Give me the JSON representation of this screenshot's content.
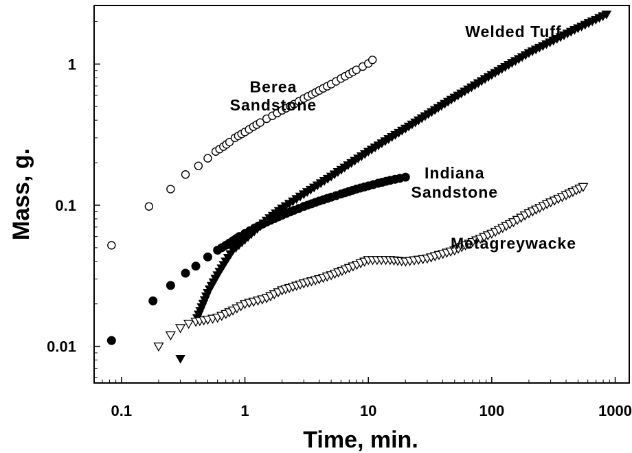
{
  "chart_data": {
    "type": "scatter",
    "x_scale": "log",
    "y_scale": "log",
    "xlim": [
      0.06,
      1300
    ],
    "ylim": [
      0.0055,
      2.6
    ],
    "grid": false,
    "legend": "none",
    "xlabel": "Time, min.",
    "ylabel": "Mass, g.",
    "x_ticks": [
      {
        "value": 0.1,
        "label": "0.1"
      },
      {
        "value": 1,
        "label": "1"
      },
      {
        "value": 10,
        "label": "10"
      },
      {
        "value": 100,
        "label": "100"
      },
      {
        "value": 1000,
        "label": "1000"
      }
    ],
    "y_ticks": [
      {
        "value": 0.01,
        "label": "0.01"
      },
      {
        "value": 0.1,
        "label": "0.1"
      },
      {
        "value": 1,
        "label": "1"
      }
    ],
    "series": [
      {
        "name": "Berea Sandstone",
        "marker": "open-circle",
        "x": [
          0.083,
          0.167,
          0.25,
          0.33,
          0.42,
          0.5,
          0.58,
          0.67,
          0.75,
          0.83,
          1.0,
          1.17,
          1.33,
          1.5,
          1.67,
          2.0,
          2.5,
          3.0,
          3.5,
          4.0,
          5.0,
          6.0,
          7.0,
          8.0,
          9.0,
          10.0,
          10.8
        ],
        "y": [
          0.052,
          0.098,
          0.13,
          0.165,
          0.19,
          0.215,
          0.24,
          0.26,
          0.28,
          0.3,
          0.33,
          0.36,
          0.385,
          0.41,
          0.43,
          0.47,
          0.52,
          0.57,
          0.61,
          0.65,
          0.72,
          0.79,
          0.85,
          0.91,
          0.96,
          1.01,
          1.07
        ]
      },
      {
        "name": "Indiana Sandstone",
        "marker": "filled-circle",
        "x": [
          0.083,
          0.18,
          0.25,
          0.33,
          0.4,
          0.5,
          0.6,
          0.7,
          0.8,
          0.9,
          1.0,
          1.2,
          1.5,
          2.0,
          2.5,
          3.0,
          4.0,
          5.0,
          6.0,
          8.0,
          10.0,
          12.0,
          15.0,
          18.0,
          20.0
        ],
        "y": [
          0.011,
          0.021,
          0.027,
          0.033,
          0.037,
          0.043,
          0.048,
          0.052,
          0.056,
          0.06,
          0.063,
          0.069,
          0.076,
          0.085,
          0.092,
          0.098,
          0.107,
          0.114,
          0.12,
          0.13,
          0.137,
          0.143,
          0.15,
          0.155,
          0.158
        ]
      },
      {
        "name": "Welded Tuff",
        "marker": "filled-triangle-down",
        "x": [
          0.3,
          0.4,
          0.5,
          0.6,
          0.7,
          0.8,
          1.0,
          1.5,
          2.0,
          3.0,
          5.0,
          10.0,
          20.0,
          50.0,
          100.0,
          200.0,
          500.0,
          850.0
        ],
        "y": [
          0.0082,
          0.015,
          0.024,
          0.032,
          0.04,
          0.048,
          0.057,
          0.078,
          0.095,
          0.12,
          0.16,
          0.24,
          0.35,
          0.58,
          0.84,
          1.2,
          1.8,
          2.25
        ]
      },
      {
        "name": "Metagreywacke",
        "marker": "open-triangle-down",
        "x": [
          0.2,
          0.25,
          0.3,
          0.35,
          0.4,
          0.5,
          0.6,
          0.7,
          0.8,
          1.0,
          1.5,
          2.0,
          3.0,
          4.0,
          5.0,
          7.0,
          10.0,
          15.0,
          20.0,
          30.0,
          50.0,
          70.0,
          100.0,
          150.0,
          200.0,
          300.0,
          400.0,
          550.0
        ],
        "y": [
          0.01,
          0.012,
          0.0135,
          0.0145,
          0.015,
          0.0155,
          0.016,
          0.017,
          0.018,
          0.02,
          0.022,
          0.025,
          0.028,
          0.03,
          0.032,
          0.036,
          0.041,
          0.041,
          0.04,
          0.042,
          0.048,
          0.055,
          0.063,
          0.076,
          0.088,
          0.105,
          0.118,
          0.135
        ]
      }
    ],
    "annotations": [
      {
        "text": "Welded Tuff",
        "x": 150,
        "y": 1.55
      },
      {
        "text": "Berea",
        "x": 1.7,
        "y": 0.63
      },
      {
        "text": "Sandstone",
        "x": 1.7,
        "y": 0.47
      },
      {
        "text": "Indiana",
        "x": 50,
        "y": 0.155
      },
      {
        "text": "Sandstone",
        "x": 50,
        "y": 0.113
      },
      {
        "text": "Metagreywacke",
        "x": 150,
        "y": 0.049
      }
    ]
  }
}
